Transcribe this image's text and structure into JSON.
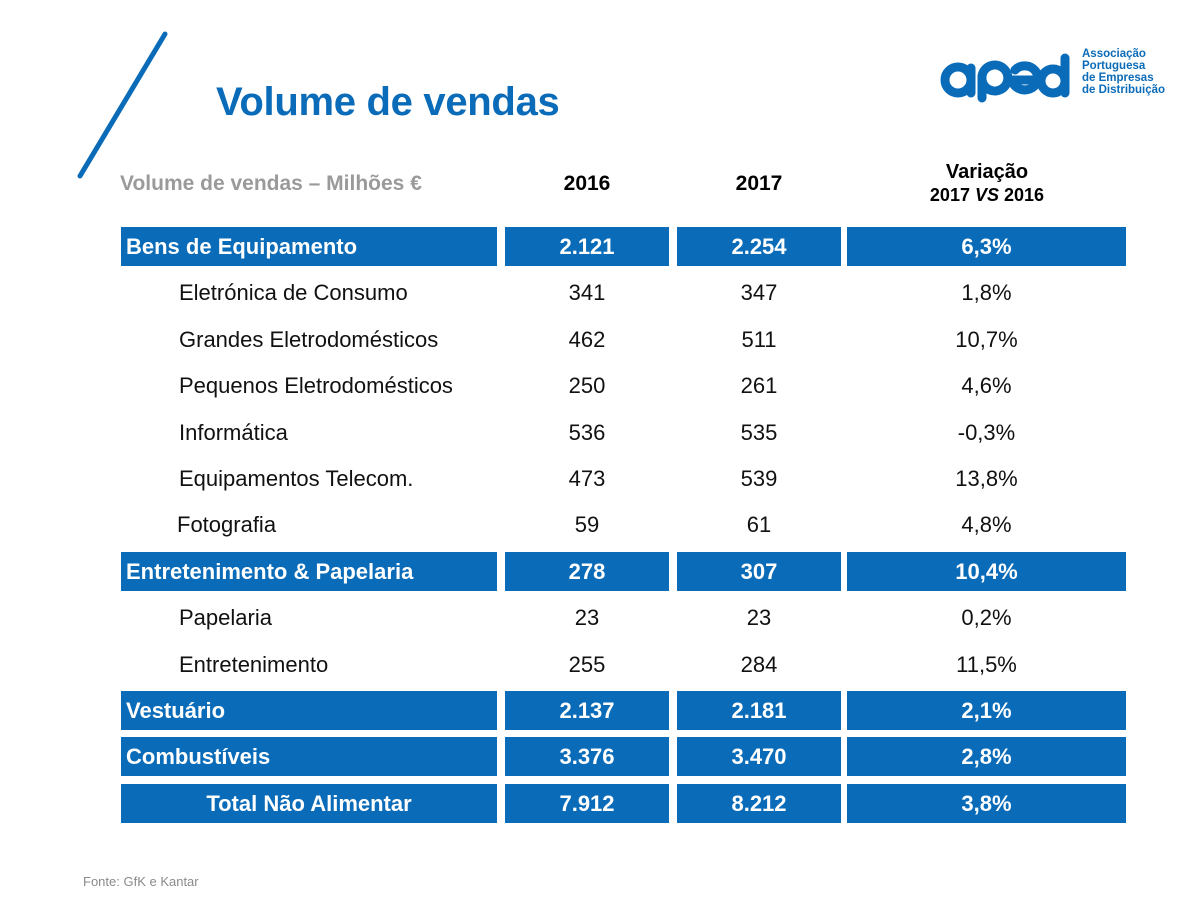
{
  "slide": {
    "title": "Volume de vendas",
    "source": "Fonte: GfK e Kantar",
    "accent_color": "#0a6bb8"
  },
  "logo": {
    "wordmark": "aped",
    "lines": [
      "Associação",
      "Portuguesa",
      "de Empresas",
      "de Distribuição"
    ]
  },
  "table": {
    "header": {
      "label": "Volume de vendas – Milhões €",
      "year1": "2016",
      "year2": "2017",
      "variation_line1": "Variação",
      "variation_line2_a": "2017",
      "variation_line2_vs": "VS",
      "variation_line2_b": "2016"
    },
    "rows": [
      {
        "type": "cat",
        "name": "Bens de Equipamento",
        "y2016": "2.121",
        "y2017": "2.254",
        "variation": "6,3%"
      },
      {
        "type": "sub",
        "name": "Eletrónica de Consumo",
        "y2016": "341",
        "y2017": "347",
        "variation": "1,8%"
      },
      {
        "type": "sub",
        "name": "Grandes Eletrodomésticos",
        "y2016": "462",
        "y2017": "511",
        "variation": "10,7%"
      },
      {
        "type": "sub",
        "name": "Pequenos Eletrodomésticos",
        "y2016": "250",
        "y2017": "261",
        "variation": "4,6%"
      },
      {
        "type": "sub",
        "name": "Informática",
        "y2016": "536",
        "y2017": "535",
        "variation": "-0,3%"
      },
      {
        "type": "sub",
        "name": "Equipamentos Telecom.",
        "y2016": "473",
        "y2017": "539",
        "variation": "13,8%"
      },
      {
        "type": "sub",
        "name": "Fotografia",
        "y2016": "59",
        "y2017": "61",
        "variation": "4,8%"
      },
      {
        "type": "cat",
        "name": "Entretenimento & Papelaria",
        "y2016": "278",
        "y2017": "307",
        "variation": "10,4%"
      },
      {
        "type": "sub",
        "name": "Papelaria",
        "y2016": "23",
        "y2017": "23",
        "variation": "0,2%"
      },
      {
        "type": "sub",
        "name": "Entretenimento",
        "y2016": "255",
        "y2017": "284",
        "variation": "11,5%"
      },
      {
        "type": "cat",
        "name": "Vestuário",
        "y2016": "2.137",
        "y2017": "2.181",
        "variation": "2,1%"
      },
      {
        "type": "cat",
        "name": "Combustíveis",
        "y2016": "3.376",
        "y2017": "3.470",
        "variation": "2,8%"
      },
      {
        "type": "total",
        "name": "Total Não Alimentar",
        "y2016": "7.912",
        "y2017": "8.212",
        "variation": "3,8%"
      }
    ]
  }
}
